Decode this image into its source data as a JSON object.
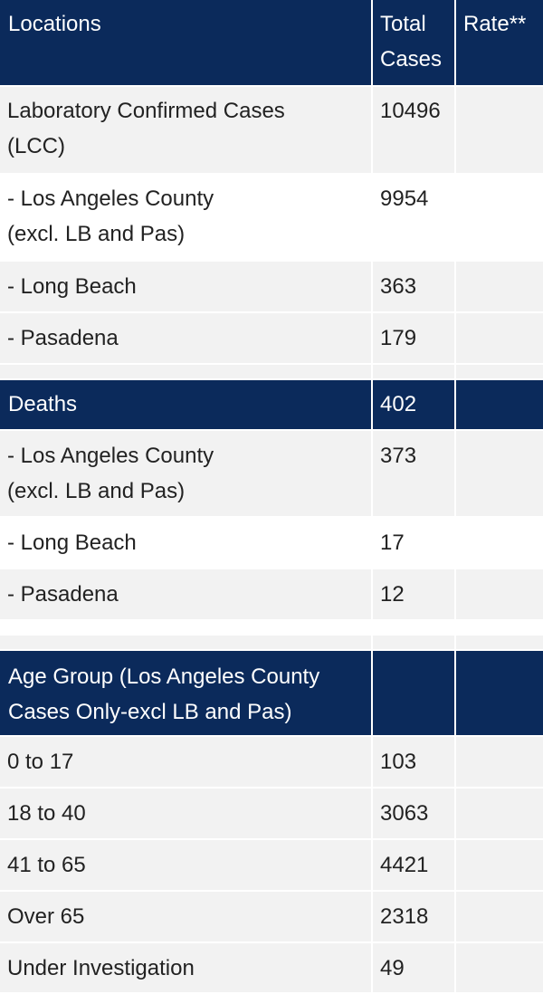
{
  "header": {
    "locations": "Locations",
    "total_cases_line1": "Total",
    "total_cases_line2": "Cases",
    "rate": "Rate**"
  },
  "lcc": {
    "label_line1": "Laboratory Confirmed Cases",
    "label_line2": "(LCC)",
    "total": "10496",
    "rate": ""
  },
  "lcc_rows": [
    {
      "label_line1": "- Los Angeles County",
      "label_line2": "(excl. LB and Pas)",
      "total": "9954",
      "rate": ""
    },
    {
      "label_line1": "- Long Beach",
      "total": "363",
      "rate": ""
    },
    {
      "label_line1": "- Pasadena",
      "total": "179",
      "rate": ""
    }
  ],
  "deaths": {
    "label": "Deaths",
    "total": "402",
    "rate": ""
  },
  "death_rows": [
    {
      "label_line1": "- Los Angeles County",
      "label_line2": "(excl. LB and Pas)",
      "total": "373",
      "rate": ""
    },
    {
      "label_line1": "- Long Beach",
      "total": "17",
      "rate": ""
    },
    {
      "label_line1": "- Pasadena",
      "total": "12",
      "rate": ""
    }
  ],
  "age_group": {
    "label_line1": "Age Group (Los Angeles County",
    "label_line2": "Cases Only-excl LB and Pas)",
    "total": "",
    "rate": ""
  },
  "age_rows": [
    {
      "label": "0 to 17",
      "total": "103",
      "rate": ""
    },
    {
      "label": "18 to 40",
      "total": "3063",
      "rate": ""
    },
    {
      "label": "41 to 65",
      "total": "4421",
      "rate": ""
    },
    {
      "label": "Over 65",
      "total": "2318",
      "rate": ""
    },
    {
      "label": "Under Investigation",
      "total": "49",
      "rate": ""
    }
  ]
}
